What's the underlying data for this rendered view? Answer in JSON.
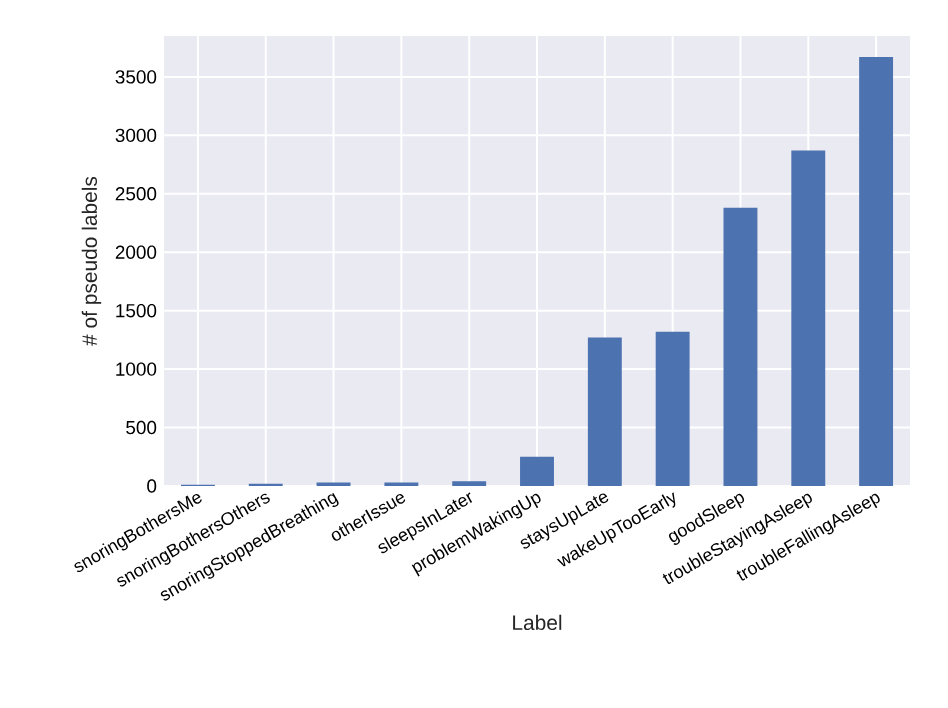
{
  "chart_data": {
    "type": "bar",
    "xlabel": "Label",
    "ylabel": "# of pseudo labels",
    "categories": [
      "snoringBothersMe",
      "snoringBothersOthers",
      "snoringStoppedBreathing",
      "otherIssue",
      "sleepsInLater",
      "problemWakingUp",
      "staysUpLate",
      "wakeUpTooEarly",
      "goodSleep",
      "troubleStayingAsleep",
      "troubleFallingAsleep"
    ],
    "values": [
      10,
      20,
      30,
      30,
      40,
      250,
      1270,
      1320,
      2380,
      2870,
      3670
    ],
    "color": "#4c72b0",
    "ylim": [
      0,
      3850
    ],
    "yticks": [
      0,
      500,
      1000,
      1500,
      2000,
      2500,
      3000,
      3500
    ],
    "grid": true
  }
}
